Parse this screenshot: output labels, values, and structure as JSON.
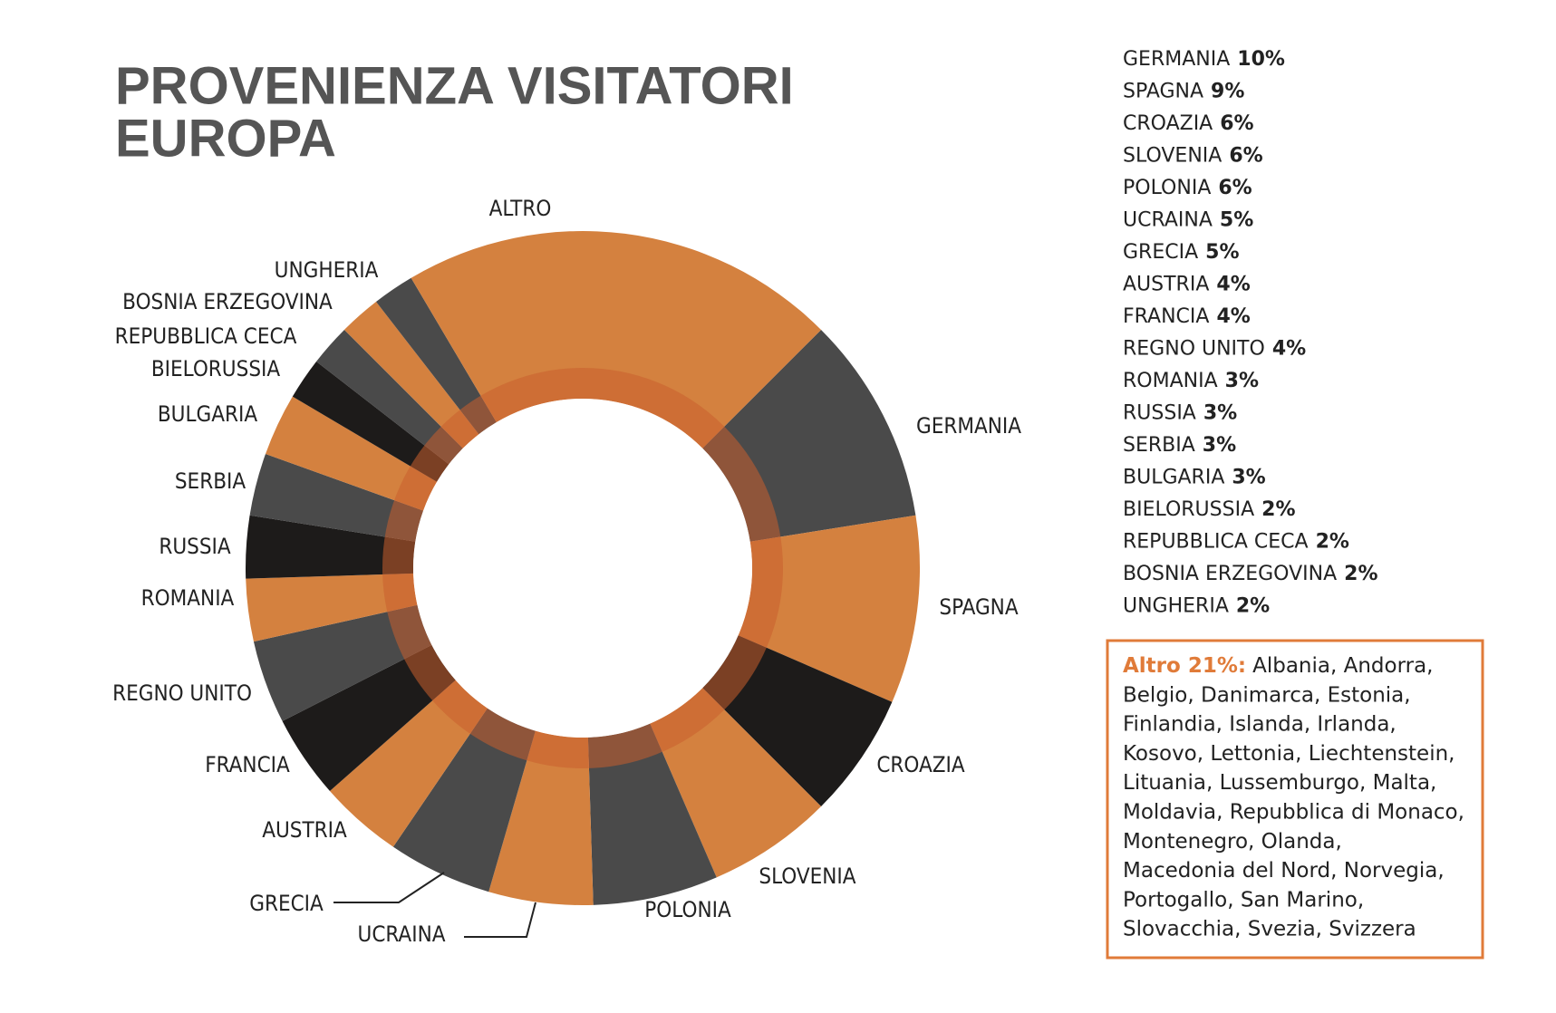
{
  "chart_data": {
    "type": "donut",
    "title": [
      "PROVENIENZA VISITATORI",
      "EUROPA"
    ],
    "categories": [
      "GERMANIA",
      "SPAGNA",
      "CROAZIA",
      "SLOVENIA",
      "POLONIA",
      "UCRAINA",
      "GRECIA",
      "AUSTRIA",
      "FRANCIA",
      "REGNO UNITO",
      "ROMANIA",
      "RUSSIA",
      "SERBIA",
      "BULGARIA",
      "BIELORUSSIA",
      "REPUBBLICA CECA",
      "BOSNIA ERZEGOVINA",
      "UNGHERIA",
      "ALTRO"
    ],
    "values": [
      10,
      9,
      6,
      6,
      6,
      5,
      5,
      4,
      4,
      4,
      3,
      3,
      3,
      3,
      2,
      2,
      2,
      2,
      21
    ],
    "value_labels": [
      "10%",
      "9%",
      "6%",
      "6%",
      "6%",
      "5%",
      "5%",
      "4%",
      "4%",
      "4%",
      "3%",
      "3%",
      "3%",
      "3%",
      "2%",
      "2%",
      "2%",
      "2%",
      "21%"
    ],
    "colors": [
      "#4a4a4a",
      "#d4813f",
      "#1d1b1a",
      "#d4813f",
      "#4a4a4a",
      "#d4813f",
      "#4a4a4a",
      "#d4813f",
      "#1d1b1a",
      "#4a4a4a",
      "#d4813f",
      "#1d1b1a",
      "#4a4a4a",
      "#d4813f",
      "#1d1b1a",
      "#4a4a4a",
      "#d4813f",
      "#4a4a4a",
      "#d4813f"
    ],
    "note": {
      "title": "Altro 21%:",
      "lines": [
        "Albania, Andorra,",
        "Belgio, Danimarca, Estonia,",
        "Finlandia, Islanda, Irlanda,",
        "Kosovo, Lettonia, Liechtenstein,",
        "Lituania, Lussemburgo, Malta,",
        "Moldavia, Repubblica di Monaco,",
        "Montenegro, Olanda,",
        "Macedonia del Nord, Norvegia,",
        "Portogallo, San Marino,",
        "Slovacchia, Svezia, Svizzera"
      ]
    }
  }
}
